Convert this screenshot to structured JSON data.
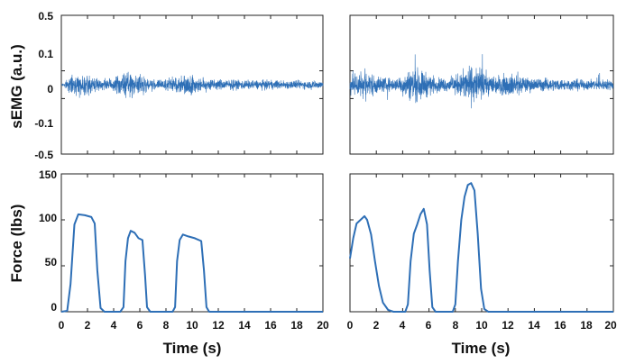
{
  "chart_data": [
    {
      "panel": "top-left",
      "type": "line",
      "title": "",
      "xlabel": "",
      "ylabel": "sEMG (a.u.)",
      "xlim": [
        0,
        20
      ],
      "ylim": [
        -0.5,
        0.5
      ],
      "yticks": [
        "-0.5",
        "-0.1",
        "0",
        "0.1",
        "0.5"
      ],
      "series": [
        {
          "color": "#2e6fb6",
          "points": [
            [
              0,
              0.0
            ],
            [
              0.4,
              0.025
            ],
            [
              0.8,
              0.04
            ],
            [
              1.5,
              0.05
            ],
            [
              2.2,
              0.045
            ],
            [
              2.8,
              0.03
            ],
            [
              3.5,
              0.025
            ],
            [
              4.2,
              0.045
            ],
            [
              5,
              0.055
            ],
            [
              6,
              0.05
            ],
            [
              6.7,
              0.03
            ],
            [
              7.5,
              0.022
            ],
            [
              8.5,
              0.035
            ],
            [
              9.5,
              0.048
            ],
            [
              10.5,
              0.04
            ],
            [
              11.5,
              0.028
            ],
            [
              13,
              0.024
            ],
            [
              15,
              0.022
            ],
            [
              17,
              0.021
            ],
            [
              20,
              0.02
            ]
          ]
        }
      ]
    },
    {
      "panel": "top-right",
      "type": "line",
      "title": "",
      "xlabel": "",
      "ylabel": "",
      "xlim": [
        0,
        20
      ],
      "ylim": [
        -0.5,
        0.5
      ],
      "series": [
        {
          "color": "#2e6fb6",
          "points": [
            [
              0,
              0.04
            ],
            [
              0.4,
              0.065
            ],
            [
              0.8,
              0.07
            ],
            [
              1.5,
              0.06
            ],
            [
              2.5,
              0.035
            ],
            [
              3.5,
              0.03
            ],
            [
              4.2,
              0.06
            ],
            [
              4.8,
              0.085
            ],
            [
              5.5,
              0.07
            ],
            [
              6.5,
              0.035
            ],
            [
              7.5,
              0.032
            ],
            [
              8.3,
              0.055
            ],
            [
              9,
              0.09
            ],
            [
              9.7,
              0.085
            ],
            [
              10.5,
              0.05
            ],
            [
              11.5,
              0.048
            ],
            [
              12.5,
              0.055
            ],
            [
              13.5,
              0.035
            ],
            [
              15,
              0.03
            ],
            [
              17,
              0.026
            ],
            [
              20,
              0.025
            ]
          ]
        }
      ]
    },
    {
      "panel": "bottom-left",
      "type": "line",
      "title": "",
      "xlabel": "Time (s)",
      "ylabel": "Force (lbs)",
      "xlim": [
        0,
        20
      ],
      "ylim": [
        0,
        150
      ],
      "xticks": [
        "0",
        "2",
        "4",
        "6",
        "8",
        "10",
        "12",
        "14",
        "16",
        "18",
        "20"
      ],
      "yticks": [
        "0",
        "50",
        "100",
        "150"
      ],
      "series": [
        {
          "color": "#2e6fb6",
          "points": [
            [
              0,
              0
            ],
            [
              0.45,
              1
            ],
            [
              0.7,
              30
            ],
            [
              1.0,
              95
            ],
            [
              1.3,
              106
            ],
            [
              1.8,
              105
            ],
            [
              2.3,
              103
            ],
            [
              2.55,
              96
            ],
            [
              2.75,
              45
            ],
            [
              3.0,
              4
            ],
            [
              3.3,
              0
            ],
            [
              4.5,
              0
            ],
            [
              4.75,
              5
            ],
            [
              4.9,
              55
            ],
            [
              5.1,
              80
            ],
            [
              5.3,
              88
            ],
            [
              5.6,
              86
            ],
            [
              5.9,
              80
            ],
            [
              6.2,
              78
            ],
            [
              6.4,
              40
            ],
            [
              6.55,
              5
            ],
            [
              6.8,
              0
            ],
            [
              8.5,
              0
            ],
            [
              8.7,
              5
            ],
            [
              8.85,
              55
            ],
            [
              9.05,
              78
            ],
            [
              9.3,
              84
            ],
            [
              9.7,
              82
            ],
            [
              10.2,
              80
            ],
            [
              10.7,
              77
            ],
            [
              10.9,
              45
            ],
            [
              11.1,
              5
            ],
            [
              11.3,
              0
            ],
            [
              14,
              0
            ],
            [
              16,
              0
            ],
            [
              20,
              0
            ]
          ]
        }
      ]
    },
    {
      "panel": "bottom-right",
      "type": "line",
      "title": "",
      "xlabel": "Time (s)",
      "ylabel": "",
      "xlim": [
        0,
        20
      ],
      "ylim": [
        0,
        150
      ],
      "xticks": [
        "0",
        "2",
        "4",
        "6",
        "8",
        "10",
        "12",
        "14",
        "16",
        "18",
        "20"
      ],
      "series": [
        {
          "color": "#2e6fb6",
          "points": [
            [
              0,
              58
            ],
            [
              0.25,
              80
            ],
            [
              0.5,
              96
            ],
            [
              0.8,
              100
            ],
            [
              1.1,
              104
            ],
            [
              1.3,
              100
            ],
            [
              1.6,
              84
            ],
            [
              1.9,
              55
            ],
            [
              2.2,
              28
            ],
            [
              2.5,
              10
            ],
            [
              2.9,
              2
            ],
            [
              3.3,
              0
            ],
            [
              4.2,
              0
            ],
            [
              4.4,
              8
            ],
            [
              4.6,
              55
            ],
            [
              4.85,
              85
            ],
            [
              5.1,
              95
            ],
            [
              5.35,
              106
            ],
            [
              5.6,
              112
            ],
            [
              5.85,
              95
            ],
            [
              6.05,
              45
            ],
            [
              6.25,
              5
            ],
            [
              6.5,
              0
            ],
            [
              7.8,
              0
            ],
            [
              8.0,
              8
            ],
            [
              8.2,
              55
            ],
            [
              8.45,
              100
            ],
            [
              8.7,
              125
            ],
            [
              8.95,
              138
            ],
            [
              9.2,
              140
            ],
            [
              9.45,
              132
            ],
            [
              9.7,
              85
            ],
            [
              9.95,
              25
            ],
            [
              10.2,
              3
            ],
            [
              10.5,
              0
            ],
            [
              13,
              0
            ],
            [
              16,
              0
            ],
            [
              20,
              0
            ]
          ]
        }
      ]
    }
  ]
}
